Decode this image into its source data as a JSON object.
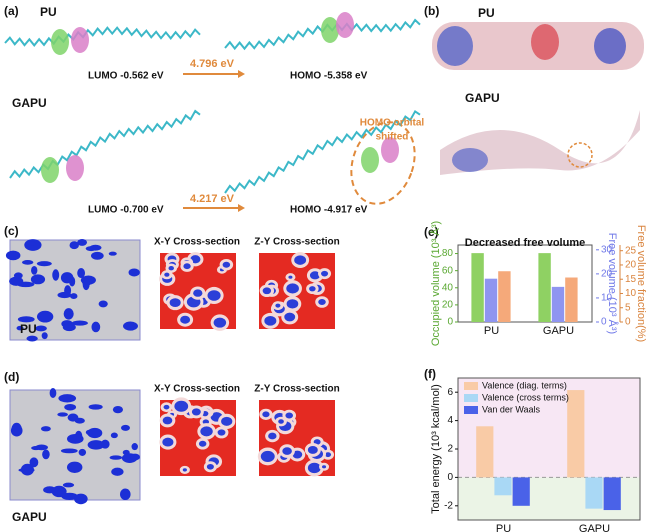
{
  "panel_a": {
    "label": "(a)",
    "pu_label": "PU",
    "gapu_label": "GAPU",
    "pu_lumo": "LUMO  -0.562 eV",
    "pu_gap": "4.796 eV",
    "pu_homo": "HOMO  -5.358  eV",
    "gapu_lumo": "LUMO  -0.700 eV",
    "gapu_gap": "4.217 eV",
    "gapu_homo": "HOMO  -4.917 eV",
    "annotation": [
      "HOMO orbital",
      "shifted"
    ]
  },
  "panel_b": {
    "label": "(b)",
    "pu_label": "PU",
    "gapu_label": "GAPU"
  },
  "panel_c": {
    "label": "(c)",
    "xy": "X-Y Cross-section",
    "zy": "Z-Y Cross-section",
    "name": "PU"
  },
  "panel_d": {
    "label": "(d)",
    "xy": "X-Y Cross-section",
    "zy": "Z-Y Cross-section",
    "name": "GAPU"
  },
  "chart_data": [
    {
      "type": "bar",
      "label": "(e)",
      "title": "Decreased free volume",
      "categories": [
        "PU",
        "GAPU"
      ],
      "ylabel": "Occupied volume (10³ Å³)",
      "y2label": "Free volume (10³ Å³)",
      "y3label": "Free volume fraction(%)",
      "series": [
        {
          "color": "#8fd163",
          "axis": "y",
          "values": [
            80.5,
            80.5
          ]
        },
        {
          "color": "#8f95f0",
          "axis": "y2",
          "values": [
            18,
            14.6
          ]
        },
        {
          "color": "#f5a97a",
          "axis": "y3",
          "values": [
            17.8,
            15.6
          ]
        }
      ],
      "ylim": [
        0,
        90
      ],
      "yticks": [
        0,
        20,
        40,
        60,
        80
      ],
      "y2lim": [
        0,
        32
      ],
      "y2ticks": [
        0,
        10,
        20,
        30
      ],
      "y3lim": [
        0,
        27
      ],
      "y3ticks": [
        0,
        5,
        10,
        15,
        20,
        25
      ]
    },
    {
      "type": "bar",
      "label": "(f)",
      "ylabel": "Total energy (10³ kcal/mol)",
      "categories": [
        "PU",
        "GAPU"
      ],
      "series": [
        {
          "name": "Valence (diag. terms)",
          "color": "#f9cba6",
          "values": [
            3.6,
            6.15
          ]
        },
        {
          "name": "Valence (cross terms)",
          "color": "#a9d8f5",
          "values": [
            -1.26,
            -2.2
          ]
        },
        {
          "name": "Van der Waals",
          "color": "#4a62e8",
          "values": [
            -2,
            -2.3
          ]
        }
      ],
      "ylim": [
        -3,
        7
      ],
      "yticks": [
        -2,
        0,
        2,
        4,
        6
      ]
    }
  ]
}
